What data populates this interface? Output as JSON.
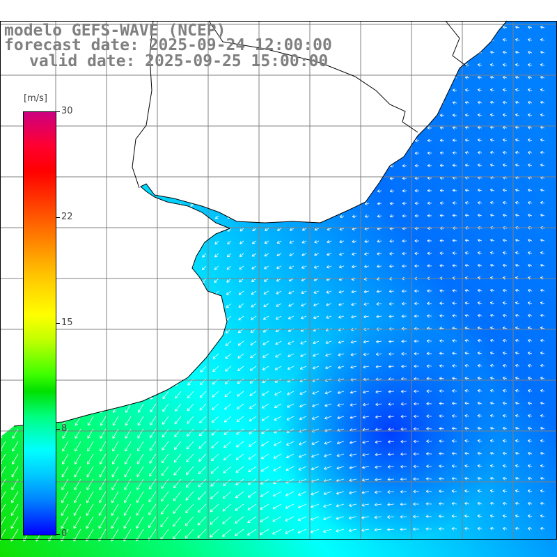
{
  "title": {
    "line1": "modelo GEFS-WAVE (NCEP)",
    "line2": "forecast date: 2025-09-24 12:00:00",
    "line3": "valid date: 2025-09-25 15:00:00"
  },
  "colorbar": {
    "unit": "[m/s]",
    "labels": [
      "30",
      "22",
      "15",
      "8",
      "0"
    ],
    "colors": [
      "#cc0080",
      "#ff0000",
      "#ff8000",
      "#ffff00",
      "#00ff00",
      "#00ffff",
      "#0080ff",
      "#0000ff"
    ]
  },
  "map": {
    "land_color": "#ffffff",
    "coastline_color": "#000000",
    "grid_color": "#808080",
    "vector_color": "#ffffff"
  }
}
